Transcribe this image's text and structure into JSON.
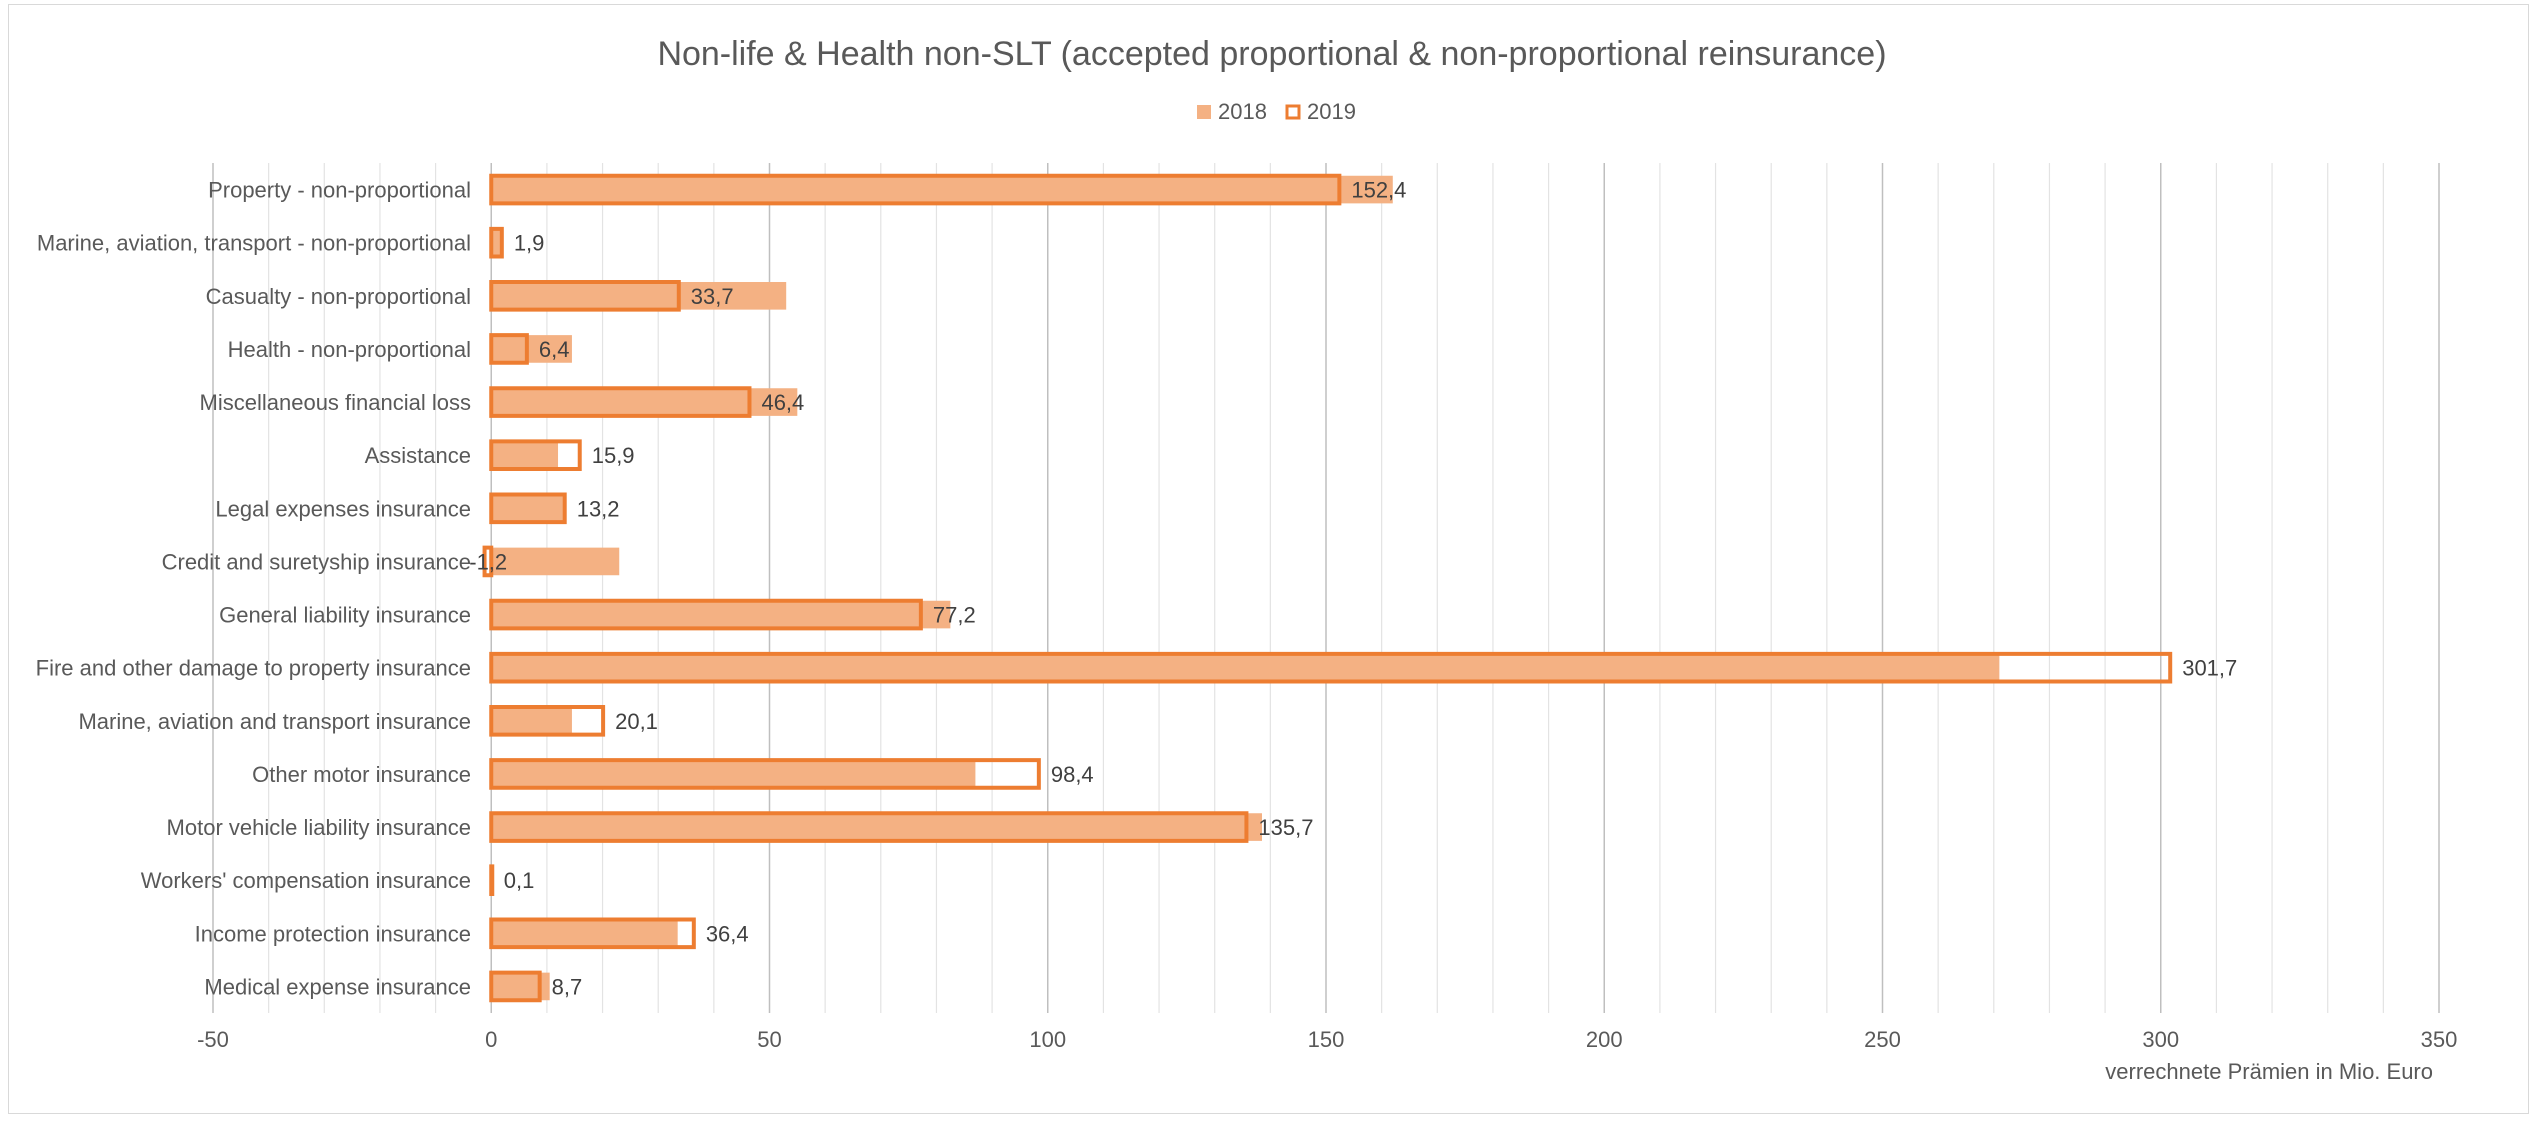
{
  "chart_data": {
    "type": "bar",
    "orientation": "horizontal",
    "title": "Non-life & Health non-SLT (accepted proportional & non-proportional reinsurance)",
    "xlabel": "verrechnete  Prämien in Mio. Euro",
    "ylabel": "",
    "xlim": [
      -50,
      350
    ],
    "x_ticks": [
      -50,
      0,
      50,
      100,
      150,
      200,
      250,
      300,
      350
    ],
    "x_tick_labels": [
      "-50",
      "0",
      "50",
      "100",
      "150",
      "200",
      "250",
      "300",
      "350"
    ],
    "grid": true,
    "legend_position": "top-center",
    "categories": [
      "Property - non-proportional",
      "Marine, aviation, transport - non-proportional",
      "Casualty - non-proportional",
      "Health - non-proportional",
      "Miscellaneous financial loss",
      "Assistance",
      "Legal expenses insurance",
      "Credit and suretyship insurance",
      "General liability insurance",
      "Fire and other damage to property insurance",
      "Marine, aviation and transport insurance",
      "Other motor insurance",
      "Motor vehicle liability insurance",
      "Workers' compensation insurance",
      "Income protection insurance",
      "Medical expense insurance"
    ],
    "series": [
      {
        "name": "2018",
        "style": "filled",
        "color": "#f4b183",
        "values": [
          162,
          1.8,
          53,
          14.5,
          55,
          12,
          13.5,
          23,
          82.5,
          271,
          14.5,
          87,
          138.5,
          0.5,
          33.5,
          10.5
        ]
      },
      {
        "name": "2019",
        "style": "outline",
        "color": "#ed7d31",
        "values": [
          152.4,
          1.9,
          33.7,
          6.4,
          46.4,
          15.9,
          13.2,
          -1.2,
          77.2,
          301.7,
          20.1,
          98.4,
          135.7,
          0.1,
          36.4,
          8.7
        ]
      }
    ],
    "data_labels_2019": [
      "152,4",
      "1,9",
      "33,7",
      "6,4",
      "46,4",
      "15,9",
      "13,2",
      "-1,2",
      "77,2",
      "301,7",
      "20,1",
      "98,4",
      "135,7",
      "0,1",
      "36,4",
      "8,7"
    ]
  }
}
